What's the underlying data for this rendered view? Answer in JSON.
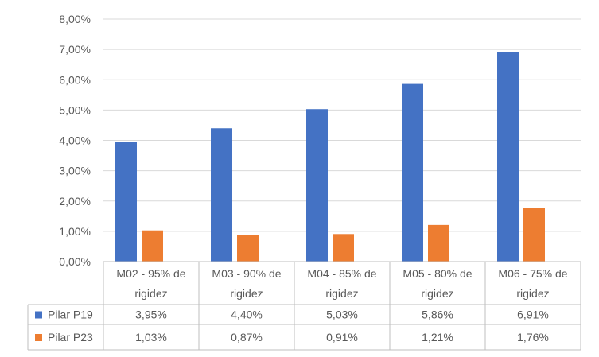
{
  "chart_data": {
    "type": "bar",
    "categories": [
      [
        "M02 - 95% de",
        "rigidez"
      ],
      [
        "M03 - 90% de",
        "rigidez"
      ],
      [
        "M04 - 85% de",
        "rigidez"
      ],
      [
        "M05 - 80% de",
        "rigidez"
      ],
      [
        "M06 - 75% de",
        "rigidez"
      ]
    ],
    "series": [
      {
        "name": "Pilar P19",
        "color": "#4472C4",
        "values": [
          3.95,
          4.4,
          5.03,
          5.86,
          6.91
        ],
        "labels": [
          "3,95%",
          "4,40%",
          "5,03%",
          "5,86%",
          "6,91%"
        ]
      },
      {
        "name": "Pilar P23",
        "color": "#ED7D31",
        "values": [
          1.03,
          0.87,
          0.91,
          1.21,
          1.76
        ],
        "labels": [
          "1,03%",
          "0,87%",
          "0,91%",
          "1,21%",
          "1,76%"
        ]
      }
    ],
    "yticks": [
      "0,00%",
      "1,00%",
      "2,00%",
      "3,00%",
      "4,00%",
      "5,00%",
      "6,00%",
      "7,00%",
      "8,00%"
    ],
    "ylim": [
      0,
      8
    ],
    "grid": true,
    "legend": "data-table"
  }
}
